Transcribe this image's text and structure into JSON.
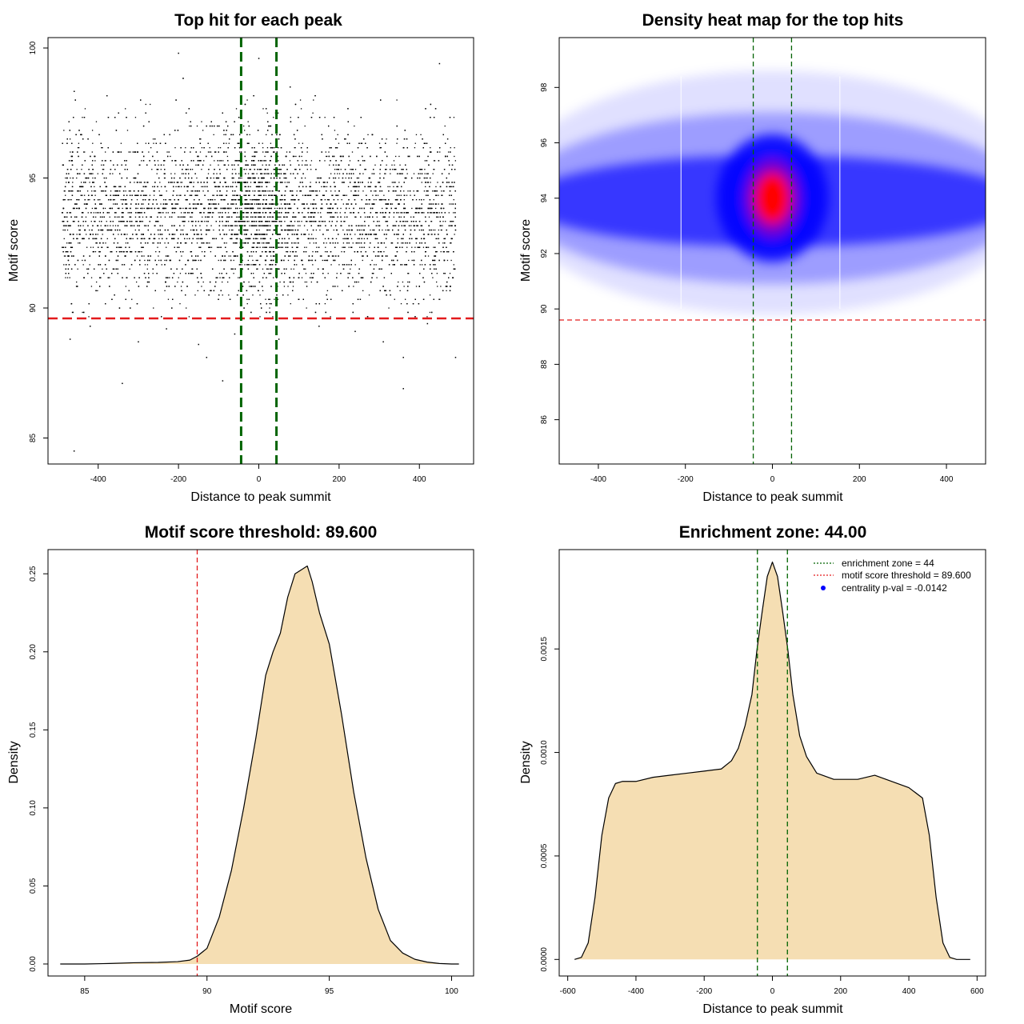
{
  "figure": {
    "colors": {
      "threshold_line": "#e31a1c",
      "zone_line": "#006400",
      "density_fill": "#f5deb3",
      "heat_low": "#ffffff",
      "heat_mid": "#0000ff",
      "heat_high": "#ff0000",
      "points": "#000000"
    }
  },
  "chart_data": [
    {
      "id": "scatter",
      "type": "scatter",
      "title": "Top hit for each peak",
      "xlabel": "Distance to peak summit",
      "ylabel": "Motif score",
      "xlim": [
        -525,
        535
      ],
      "ylim": [
        84,
        100.4
      ],
      "xticks": [
        -400,
        -200,
        0,
        200,
        400
      ],
      "yticks": [
        85,
        90,
        95,
        100
      ],
      "grid": false,
      "threshold_y": 89.6,
      "zone_x": [
        -44,
        44
      ],
      "description_of_points": "dense cloud of top hits spanning x -490..490, scores mostly 89.6-99, concentrated around 92-95; sparse outliers below threshold",
      "outliers": [
        {
          "x": -460,
          "y": 84.5
        },
        {
          "x": -340,
          "y": 87.1
        },
        {
          "x": -130,
          "y": 88.1
        },
        {
          "x": -90,
          "y": 87.2
        },
        {
          "x": 360,
          "y": 86.9
        },
        {
          "x": 490,
          "y": 88.1
        },
        {
          "x": -470,
          "y": 88.8
        },
        {
          "x": -300,
          "y": 88.7
        },
        {
          "x": 310,
          "y": 88.7
        },
        {
          "x": -150,
          "y": 88.6
        },
        {
          "x": 50,
          "y": 88.8
        },
        {
          "x": 360,
          "y": 88.1
        },
        {
          "x": -230,
          "y": 89.2
        },
        {
          "x": 150,
          "y": 89.3
        },
        {
          "x": 420,
          "y": 89.4
        },
        {
          "x": -420,
          "y": 89.3
        },
        {
          "x": 240,
          "y": 89.1
        },
        {
          "x": -60,
          "y": 89.0
        },
        {
          "x": -200,
          "y": 99.8
        },
        {
          "x": 0,
          "y": 99.6
        },
        {
          "x": 450,
          "y": 99.4
        }
      ]
    },
    {
      "id": "heatmap",
      "type": "heatmap",
      "title": "Density heat map for the top hits",
      "xlabel": "Distance to peak summit",
      "ylabel": "Motif score",
      "xlim": [
        -490,
        490
      ],
      "ylim": [
        84.4,
        99.8
      ],
      "xticks": [
        -400,
        -200,
        0,
        200,
        400
      ],
      "yticks": [
        86,
        88,
        90,
        92,
        94,
        96,
        98
      ],
      "grid": false,
      "threshold_y": 89.6,
      "zone_x": [
        -44,
        44
      ],
      "peak": {
        "x": 0,
        "y": 94
      }
    },
    {
      "id": "score-density",
      "type": "area",
      "title": "Motif score threshold: 89.600",
      "xlabel": "Motif score",
      "ylabel": "Density",
      "xlim": [
        83.5,
        100.9
      ],
      "ylim": [
        -0.0077,
        0.2655
      ],
      "xticks": [
        85,
        90,
        95,
        100
      ],
      "yticks": [
        0.0,
        0.05,
        0.1,
        0.15,
        0.2,
        0.25
      ],
      "ytick_labels": [
        "0.00",
        "0.05",
        "0.10",
        "0.15",
        "0.20",
        "0.25"
      ],
      "grid": false,
      "threshold_x": 89.6,
      "x": [
        84.0,
        85.0,
        86.0,
        87.0,
        88.0,
        88.8,
        89.3,
        89.6,
        90.0,
        90.5,
        91.0,
        91.5,
        92.0,
        92.4,
        92.7,
        93.0,
        93.3,
        93.6,
        93.8,
        94.1,
        94.3,
        94.6,
        95.0,
        95.5,
        96.0,
        96.5,
        97.0,
        97.5,
        98.0,
        98.5,
        99.0,
        99.5,
        100.0,
        100.3
      ],
      "y": [
        0.0,
        0.0,
        0.0003,
        0.0008,
        0.001,
        0.0015,
        0.0025,
        0.005,
        0.01,
        0.03,
        0.06,
        0.1,
        0.145,
        0.185,
        0.2,
        0.212,
        0.235,
        0.25,
        0.252,
        0.255,
        0.245,
        0.225,
        0.205,
        0.16,
        0.11,
        0.068,
        0.035,
        0.015,
        0.007,
        0.003,
        0.0012,
        0.0003,
        0.0,
        0.0
      ]
    },
    {
      "id": "distance-density",
      "type": "area",
      "title": "Enrichment zone: 44.00",
      "xlabel": "Distance to peak summit",
      "ylabel": "Density",
      "xlim": [
        -625,
        625
      ],
      "ylim": [
        -8e-05,
        0.00198
      ],
      "xticks": [
        -600,
        -400,
        -200,
        0,
        200,
        400,
        600
      ],
      "yticks": [
        0.0,
        0.0005,
        0.001,
        0.0015
      ],
      "ytick_labels": [
        "0.0000",
        "0.0005",
        "0.0010",
        "0.0015"
      ],
      "grid": false,
      "zone_x": [
        -44,
        44
      ],
      "legend": {
        "placement": "top-right",
        "entries": [
          {
            "label": "enrichment zone = 44",
            "style": "dotted-line",
            "color": "#006400"
          },
          {
            "label": "motif score threshold = 89.600",
            "style": "dotted-line",
            "color": "#e31a1c"
          },
          {
            "label": "centrality p-val = -0.0142",
            "style": "point",
            "color": "#0000ff"
          }
        ]
      },
      "x": [
        -580,
        -560,
        -540,
        -520,
        -500,
        -480,
        -460,
        -440,
        -400,
        -350,
        -300,
        -250,
        -200,
        -150,
        -120,
        -100,
        -80,
        -60,
        -45,
        -30,
        -15,
        0,
        15,
        30,
        45,
        60,
        80,
        100,
        130,
        180,
        250,
        300,
        350,
        400,
        440,
        460,
        480,
        500,
        520,
        540,
        560,
        580
      ],
      "y": [
        0.0,
        1e-05,
        8e-05,
        0.0003,
        0.0006,
        0.00078,
        0.00085,
        0.00086,
        0.00086,
        0.00088,
        0.00089,
        0.0009,
        0.00091,
        0.00092,
        0.00096,
        0.00102,
        0.00113,
        0.00128,
        0.0015,
        0.00168,
        0.00185,
        0.00192,
        0.00185,
        0.00168,
        0.0015,
        0.00128,
        0.00108,
        0.00098,
        0.0009,
        0.00087,
        0.00087,
        0.00089,
        0.00086,
        0.00083,
        0.00078,
        0.0006,
        0.0003,
        8e-05,
        1e-05,
        0.0,
        0.0,
        0.0
      ]
    }
  ]
}
